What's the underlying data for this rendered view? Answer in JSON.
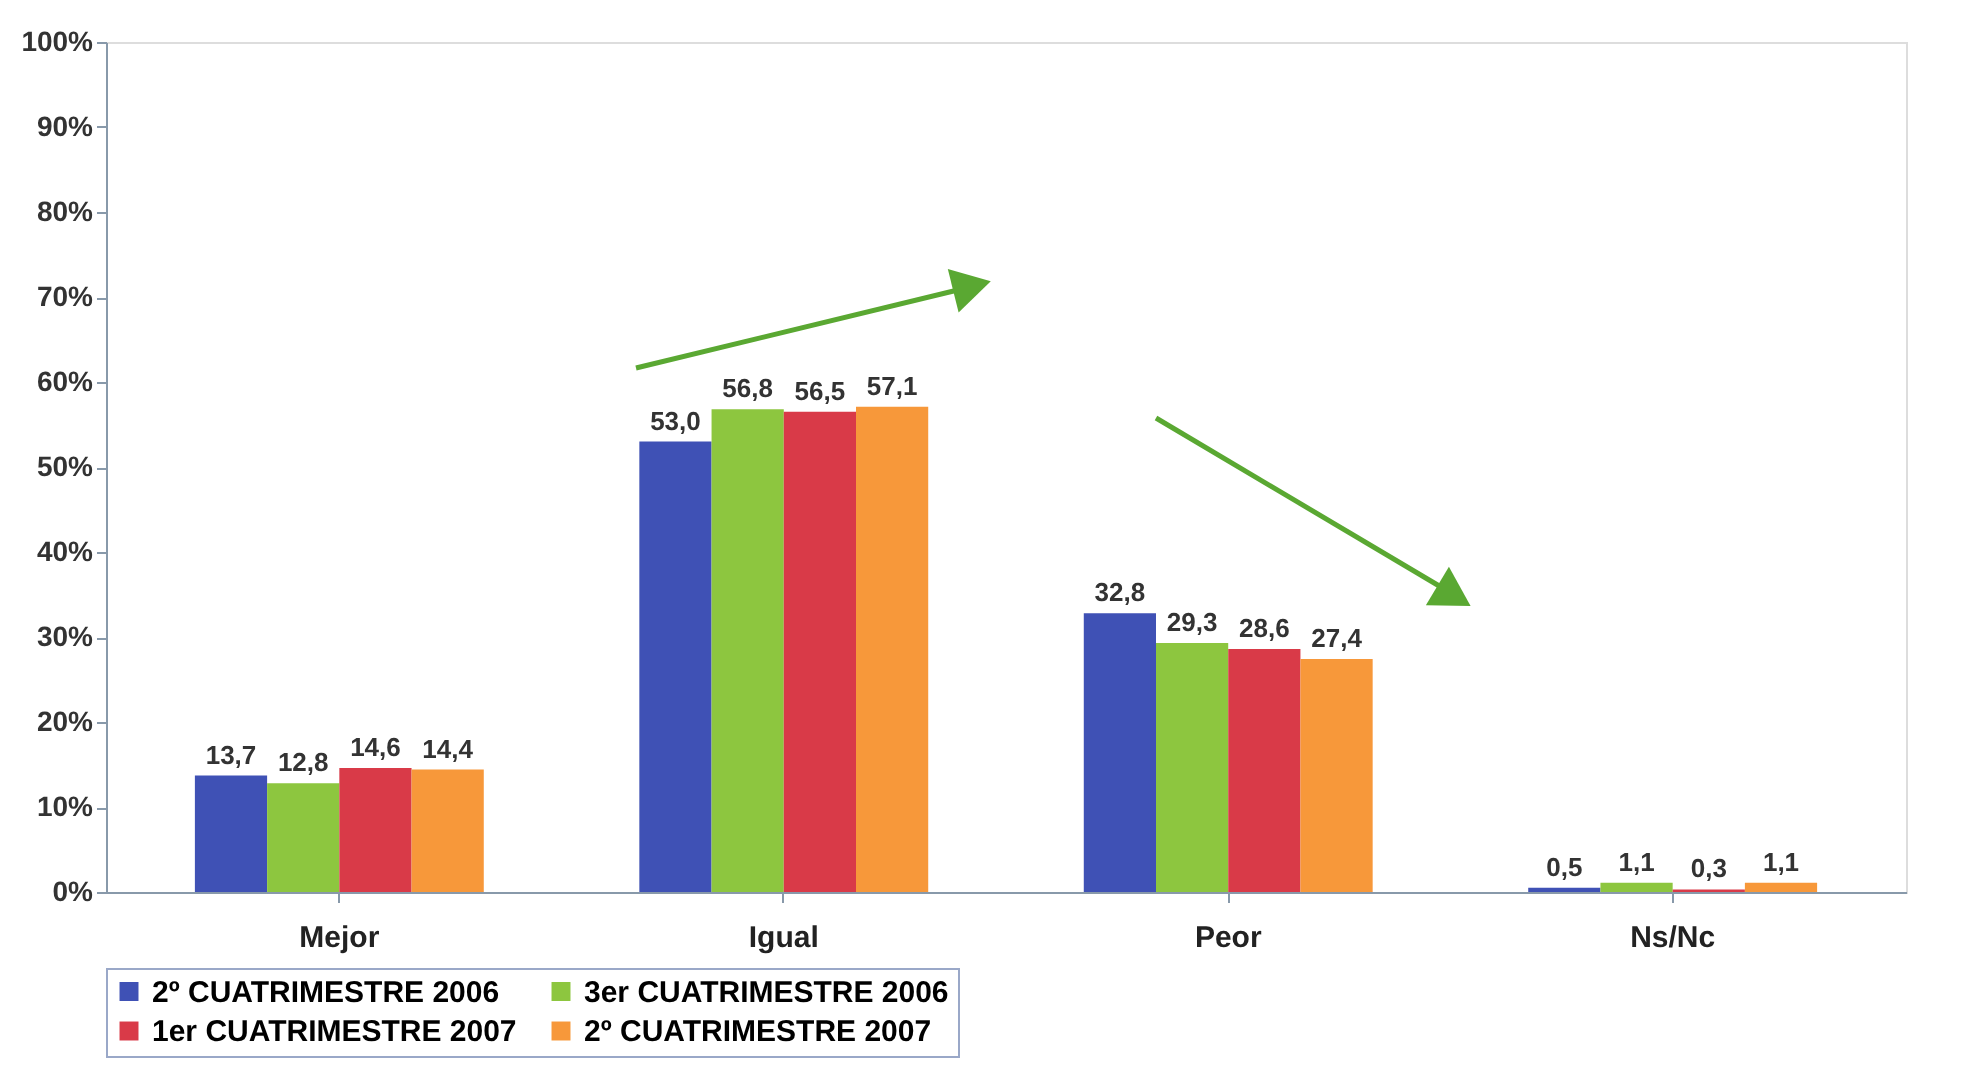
{
  "chart_data": {
    "type": "bar",
    "categories": [
      "Mejor",
      "Igual",
      "Peor",
      "Ns/Nc"
    ],
    "series": [
      {
        "name": "2º CUATRIMESTRE 2006",
        "color": "#3f51b5",
        "values": [
          13.7,
          53.0,
          32.8,
          0.5
        ],
        "value_labels": [
          "13,7",
          "53,0",
          "32,8",
          "0,5"
        ]
      },
      {
        "name": "3er CUATRIMESTRE 2006",
        "color": "#8dc63f",
        "values": [
          12.8,
          56.8,
          29.3,
          1.1
        ],
        "value_labels": [
          "12,8",
          "56,8",
          "29,3",
          "1,1"
        ]
      },
      {
        "name": "1er CUATRIMESTRE 2007",
        "color": "#d93a48",
        "values": [
          14.6,
          56.5,
          28.6,
          0.3
        ],
        "value_labels": [
          "14,6",
          "56,5",
          "28,6",
          "0,3"
        ]
      },
      {
        "name": "2º CUATRIMESTRE 2007",
        "color": "#f7983a",
        "values": [
          14.4,
          57.1,
          27.4,
          1.1
        ],
        "value_labels": [
          "14,4",
          "57,1",
          "27,4",
          "1,1"
        ]
      }
    ],
    "ylim": [
      0,
      100
    ],
    "yticks": [
      {
        "value": 0,
        "label": "0%"
      },
      {
        "value": 10,
        "label": "10%"
      },
      {
        "value": 20,
        "label": "20%"
      },
      {
        "value": 30,
        "label": "30%"
      },
      {
        "value": 40,
        "label": "40%"
      },
      {
        "value": 50,
        "label": "50%"
      },
      {
        "value": 60,
        "label": "60%"
      },
      {
        "value": 70,
        "label": "70%"
      },
      {
        "value": 80,
        "label": "80%"
      },
      {
        "value": 90,
        "label": "90%"
      },
      {
        "value": 100,
        "label": "100%"
      }
    ],
    "grid": false,
    "legend": "bottom"
  }
}
